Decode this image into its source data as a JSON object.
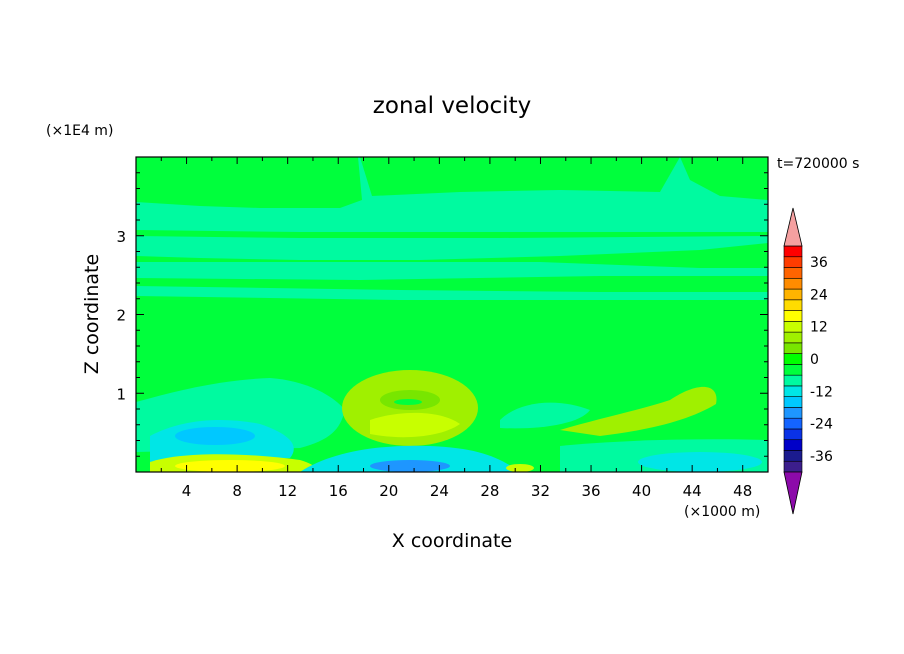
{
  "chart_data": {
    "type": "heatmap",
    "title": "zonal velocity",
    "xlabel": "X coordinate",
    "ylabel": "Z coordinate",
    "x_unit_label": "(×1000 m)",
    "y_unit_label": "(×1E4 m)",
    "time_label": "t=720000 s",
    "xlim": [
      0,
      50
    ],
    "ylim": [
      0,
      4
    ],
    "x_ticks": [
      "4",
      "8",
      "12",
      "16",
      "20",
      "24",
      "28",
      "32",
      "36",
      "40",
      "44",
      "48"
    ],
    "y_ticks": [
      "1",
      "2",
      "3"
    ],
    "colorbar": {
      "tick_labels": [
        "36",
        "24",
        "12",
        "0",
        "-12",
        "-24",
        "-36"
      ],
      "levels_min": -42,
      "levels_max": 42,
      "step": 4,
      "colors_low_to_high": [
        "#3c1e8c",
        "#1b1b8f",
        "#0000c8",
        "#0a32e6",
        "#1464ff",
        "#1e96ff",
        "#00c8ff",
        "#00e6e6",
        "#00faa0",
        "#00ff3c",
        "#00ff00",
        "#78e600",
        "#a0f000",
        "#c8ff00",
        "#ffff00",
        "#ffdc00",
        "#ffb400",
        "#ff8c00",
        "#ff6400",
        "#ff3c00",
        "#ff0000"
      ],
      "under_color": "#8c0aaa",
      "over_color": "#f5a0a0"
    },
    "field_regions": [
      {
        "name": "background",
        "value": 2
      },
      {
        "name": "upper-band",
        "value": -2
      },
      {
        "name": "thin-band-lower",
        "value": -2
      },
      {
        "name": "low-left-blob",
        "value": -5
      },
      {
        "name": "near-surface-left-cyan",
        "value": -9
      },
      {
        "name": "surface-left-yellow",
        "value": 12
      },
      {
        "name": "center-ring",
        "value": 7
      },
      {
        "name": "surface-center-blue",
        "value": -16
      },
      {
        "name": "right-low-yellow-green",
        "value": 7
      },
      {
        "name": "surface-right-cyan",
        "value": -9
      }
    ]
  }
}
